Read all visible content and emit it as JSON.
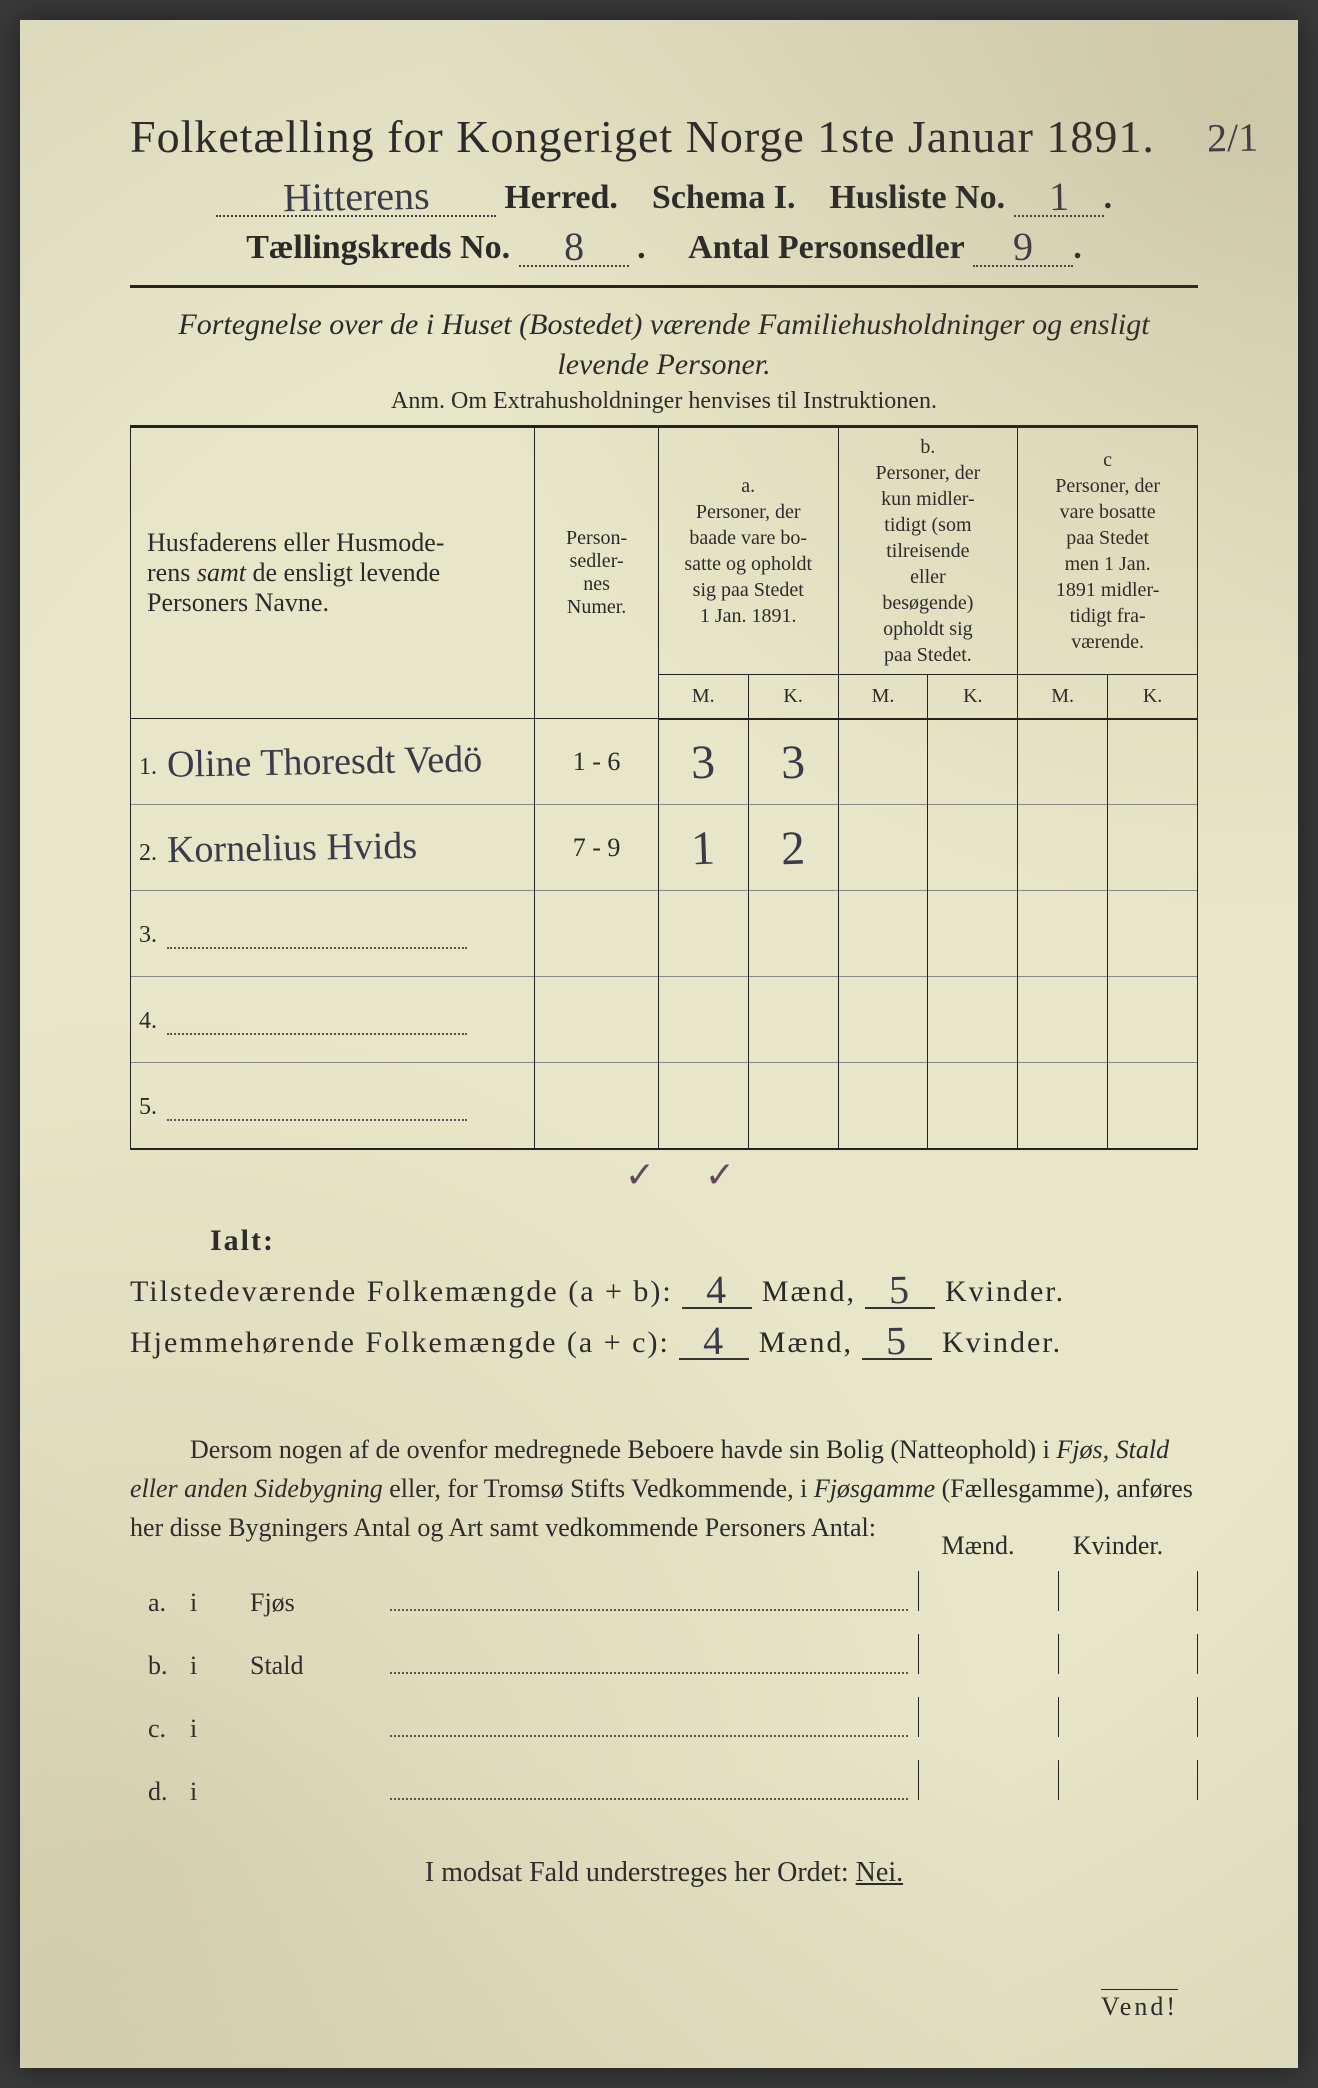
{
  "header": {
    "title": "Folketælling for Kongeriget Norge 1ste Januar 1891.",
    "corner_annotation": "2/1",
    "herred_label": "Herred.",
    "herred_value": "Hitterens",
    "schema_label": "Schema I.",
    "husliste_label": "Husliste No.",
    "husliste_value": "1",
    "kreds_label": "Tællingskreds No.",
    "kreds_value": "8",
    "antal_label": "Antal Personsedler",
    "antal_value": "9"
  },
  "subtitle": {
    "line1": "Fortegnelse over de i Huset (Bostedet) værende Familiehusholdninger og ensligt",
    "line2": "levende Personer.",
    "anm": "Anm. Om Extrahusholdninger henvises til Instruktionen."
  },
  "table": {
    "col_names": "Husfaderens eller Husmoderens samt de ensligt levende Personers Navne.",
    "col_numer": "Person-sedler-nes Numer.",
    "col_a_label": "a.",
    "col_a_text": "Personer, der baade vare bosatte og opholdt sig paa Stedet 1 Jan. 1891.",
    "col_b_label": "b.",
    "col_b_text": "Personer, der kun midlertidigt (som tilreisende eller besøgende) opholdt sig paa Stedet.",
    "col_c_label": "c",
    "col_c_text": "Personer, der vare bosatte paa Stedet men 1 Jan. 1891 midlertidigt fraværende.",
    "mk_m": "M.",
    "mk_k": "K.",
    "rows": [
      {
        "n": "1.",
        "name": "Oline Thoresdt Vedö",
        "numer": "1 - 6",
        "a_m": "3",
        "a_k": "3",
        "b_m": "",
        "b_k": "",
        "c_m": "",
        "c_k": ""
      },
      {
        "n": "2.",
        "name": "Kornelius Hvids",
        "numer": "7 - 9",
        "a_m": "1",
        "a_k": "2",
        "b_m": "",
        "b_k": "",
        "c_m": "",
        "c_k": ""
      },
      {
        "n": "3.",
        "name": "",
        "numer": "",
        "a_m": "",
        "a_k": "",
        "b_m": "",
        "b_k": "",
        "c_m": "",
        "c_k": ""
      },
      {
        "n": "4.",
        "name": "",
        "numer": "",
        "a_m": "",
        "a_k": "",
        "b_m": "",
        "b_k": "",
        "c_m": "",
        "c_k": ""
      },
      {
        "n": "5.",
        "name": "",
        "numer": "",
        "a_m": "",
        "a_k": "",
        "b_m": "",
        "b_k": "",
        "c_m": "",
        "c_k": ""
      }
    ],
    "tick_m": "✓",
    "tick_k": "✓"
  },
  "totals": {
    "ialt": "Ialt:",
    "row1_label": "Tilstedeværende Folkemængde (a + b):",
    "row2_label": "Hjemmehørende Folkemængde (a + c):",
    "maend": "Mænd,",
    "kvinder": "Kvinder.",
    "r1_m": "4",
    "r1_k": "5",
    "r2_m": "4",
    "r2_k": "5"
  },
  "para": {
    "text1": "Dersom nogen af de ovenfor medregnede Beboere havde sin Bolig (Natteophold) i ",
    "ital1": "Fjøs, Stald eller anden Sidebygning",
    "text2": " eller, for Tromsø Stifts Vedkommende, i ",
    "ital2": "Fjøsgamme",
    "text3": " (Fællesgamme), anføres her disse Bygningers Antal og Art samt vedkommende Personers Antal:"
  },
  "buildings": {
    "head_m": "Mænd.",
    "head_k": "Kvinder.",
    "rows": [
      {
        "l": "a.",
        "i": "i",
        "name": "Fjøs"
      },
      {
        "l": "b.",
        "i": "i",
        "name": "Stald"
      },
      {
        "l": "c.",
        "i": "i",
        "name": ""
      },
      {
        "l": "d.",
        "i": "i",
        "name": ""
      }
    ]
  },
  "footer": {
    "line": "I modsat Fald understreges her Ordet: ",
    "nei": "Nei.",
    "vend": "Vend!"
  },
  "style": {
    "paper_bg": "#e8e6c8",
    "ink": "#2a2a2a",
    "handwriting_color": "#3a3a4a"
  }
}
